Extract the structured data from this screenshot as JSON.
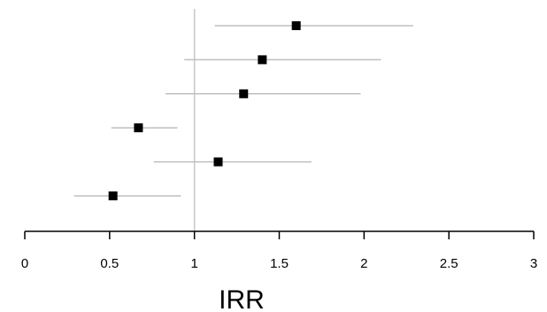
{
  "chart_data": {
    "type": "forest",
    "xlabel": "IRR",
    "xlim": [
      0,
      3
    ],
    "x_ticks": [
      0,
      0.5,
      1,
      1.5,
      2,
      2.5,
      3
    ],
    "x_tick_labels": [
      "0",
      "0.5",
      "1",
      "1.5",
      "2",
      "2.5",
      "3"
    ],
    "reference_line": 1,
    "grid": false,
    "points": [
      {
        "estimate": 1.6,
        "lower": 1.12,
        "upper": 2.29
      },
      {
        "estimate": 1.4,
        "lower": 0.94,
        "upper": 2.1
      },
      {
        "estimate": 1.29,
        "lower": 0.83,
        "upper": 1.98
      },
      {
        "estimate": 0.67,
        "lower": 0.51,
        "upper": 0.9
      },
      {
        "estimate": 1.14,
        "lower": 0.76,
        "upper": 1.69
      },
      {
        "estimate": 0.52,
        "lower": 0.29,
        "upper": 0.92
      }
    ],
    "colors": {
      "marker": "#000000",
      "ci_line": "#bfbfbf",
      "reference_line": "#c8c8c8",
      "axis": "#000000"
    }
  }
}
